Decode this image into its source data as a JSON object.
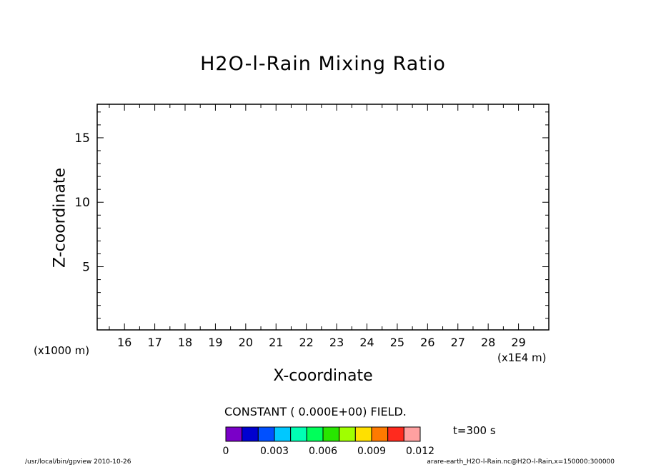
{
  "chart_data": {
    "type": "heatmap",
    "title": "H2O-l-Rain Mixing Ratio",
    "xlabel": "X-coordinate",
    "ylabel": "Z-coordinate",
    "x_unit_left": "(x1000 m)",
    "x_unit_right": "(x1E4 m)",
    "x_ticks": [
      "16",
      "17",
      "18",
      "19",
      "20",
      "21",
      "22",
      "23",
      "24",
      "25",
      "26",
      "27",
      "28",
      "29"
    ],
    "y_ticks": [
      "5",
      "10",
      "15"
    ],
    "xlim": [
      15.1,
      30.0
    ],
    "ylim": [
      0.1,
      17.6
    ],
    "grid": false,
    "field_note": "CONSTANT ( 0.000E+00) FIELD.",
    "field_value": 0,
    "time_label": "t=300 s",
    "colorbar": {
      "colors": [
        "#7a00c8",
        "#0000d0",
        "#0050ff",
        "#00c8ff",
        "#00ffb4",
        "#00ff5a",
        "#28e600",
        "#a0ff00",
        "#ffe000",
        "#ff7a00",
        "#ff2a1e",
        "#ffa0a0"
      ],
      "tick_labels": [
        "0",
        "0.003",
        "0.006",
        "0.009",
        "0.012"
      ],
      "range": [
        0,
        0.012
      ]
    }
  },
  "footer": {
    "left": "/usr/local/bin/gpview  2010-10-26",
    "right": "arare-earth_H2O-l-Rain.nc@H2O-l-Rain,x=150000:300000"
  }
}
